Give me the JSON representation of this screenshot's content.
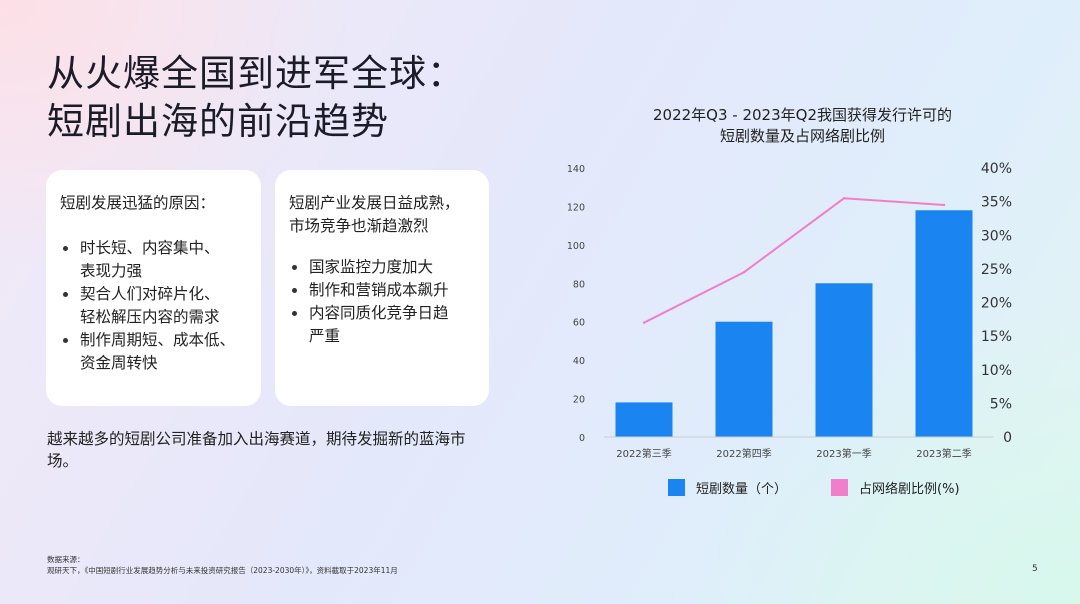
{
  "slide": {
    "title_line1": "从火爆全国到进军全球：",
    "title_line2": "短剧出海的前沿趋势",
    "page_number": "5"
  },
  "card_left": {
    "heading": "短剧发展迅猛的原因：",
    "bullets": [
      [
        "时长短、内容集中、",
        "表现力强"
      ],
      [
        "契合人们对碎片化、",
        "轻松解压内容的需求"
      ],
      [
        "制作周期短、成本低、",
        "资金周转快"
      ]
    ]
  },
  "card_right": {
    "heading": [
      "短剧产业发展日益成熟，",
      "市场竞争也渐趋激烈"
    ],
    "bullets": [
      [
        "国家监控力度加大"
      ],
      [
        "制作和营销成本飙升"
      ],
      [
        "内容同质化竞争日趋",
        "严重"
      ]
    ]
  },
  "conclusion": "越来越多的短剧公司准备加入出海赛道，期待发掘新的蓝海市场。",
  "source": {
    "label": "数据来源：",
    "text": "观研天下，《中国短剧行业发展趋势分析与未来投资研究报告（2023-2030年）》，资料截取于2023年11月"
  },
  "chart_data": {
    "type": "bar",
    "title": [
      "2022年Q3 - 2023年Q2我国获得发行许可的",
      "短剧数量及占网络剧比例"
    ],
    "categories": [
      "2022第三季",
      "2022第四季",
      "2023第一季",
      "2023第二季"
    ],
    "series": [
      {
        "name": "短剧数量（个）",
        "type": "bar",
        "axis": "left",
        "color": "#1a85f0",
        "values": [
          18,
          60,
          80,
          118
        ]
      },
      {
        "name": "占网络剧比例(%)",
        "type": "line",
        "axis": "right",
        "color": "#f07ecb",
        "values": [
          17,
          24.5,
          35.5,
          34.5
        ]
      }
    ],
    "y_left": {
      "min": 0,
      "max": 140,
      "ticks": [
        0,
        20,
        40,
        60,
        80,
        100,
        120,
        140
      ]
    },
    "y_right": {
      "min": 0,
      "max": 40,
      "ticks": [
        "0",
        "5%",
        "10%",
        "15%",
        "20%",
        "25%",
        "30%",
        "35%",
        "40%"
      ]
    },
    "grid": false,
    "legend": "bottom"
  }
}
